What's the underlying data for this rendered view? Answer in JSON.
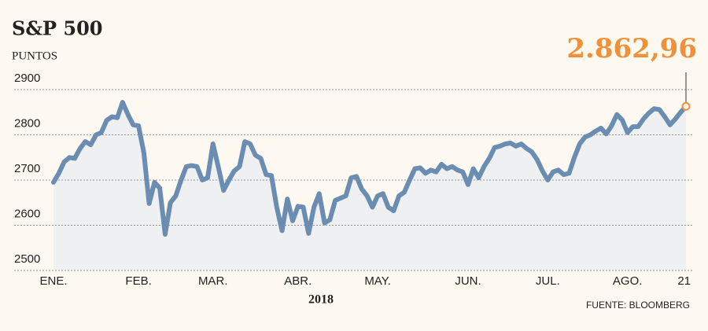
{
  "chart_data": {
    "type": "line",
    "title": "S&P 500",
    "subtitle": "PUNTOS",
    "x_label": "2018",
    "source": "FUENTE: BLOOMBERG",
    "categories": [
      "ENE.",
      null,
      null,
      null,
      null,
      null,
      null,
      null,
      null,
      null,
      null,
      null,
      null,
      null,
      null,
      null,
      "FEB.",
      null,
      null,
      null,
      null,
      null,
      null,
      null,
      null,
      null,
      null,
      null,
      null,
      null,
      "MAR.",
      null,
      null,
      null,
      null,
      null,
      null,
      null,
      null,
      null,
      null,
      null,
      null,
      null,
      null,
      null,
      "ABR.",
      null,
      null,
      null,
      null,
      null,
      null,
      null,
      null,
      null,
      null,
      null,
      null,
      null,
      null,
      "MAY.",
      null,
      null,
      null,
      null,
      null,
      null,
      null,
      null,
      null,
      null,
      null,
      null,
      null,
      null,
      null,
      null,
      "JUN.",
      null,
      null,
      null,
      null,
      null,
      null,
      null,
      null,
      null,
      null,
      null,
      null,
      null,
      null,
      "JUL.",
      null,
      null,
      null,
      null,
      null,
      null,
      null,
      null,
      null,
      null,
      null,
      null,
      null,
      null,
      "AGO.",
      null,
      null,
      null,
      null,
      null,
      null,
      null,
      null,
      null,
      null,
      "21"
    ],
    "series": [
      {
        "name": "S&P 500",
        "color": "#6b8db2",
        "values": [
          2695,
          2715,
          2740,
          2750,
          2748,
          2770,
          2785,
          2778,
          2800,
          2805,
          2832,
          2840,
          2838,
          2872,
          2845,
          2822,
          2820,
          2760,
          2648,
          2695,
          2682,
          2580,
          2650,
          2665,
          2700,
          2730,
          2732,
          2730,
          2700,
          2705,
          2780,
          2730,
          2677,
          2700,
          2720,
          2730,
          2785,
          2780,
          2755,
          2748,
          2712,
          2710,
          2640,
          2588,
          2658,
          2610,
          2642,
          2640,
          2582,
          2640,
          2670,
          2605,
          2612,
          2655,
          2660,
          2665,
          2705,
          2708,
          2680,
          2665,
          2640,
          2665,
          2670,
          2640,
          2632,
          2665,
          2673,
          2700,
          2725,
          2727,
          2715,
          2722,
          2718,
          2735,
          2725,
          2730,
          2722,
          2718,
          2690,
          2725,
          2705,
          2730,
          2748,
          2772,
          2775,
          2780,
          2782,
          2775,
          2780,
          2770,
          2762,
          2745,
          2720,
          2700,
          2718,
          2722,
          2712,
          2715,
          2750,
          2780,
          2795,
          2800,
          2808,
          2815,
          2802,
          2820,
          2845,
          2833,
          2805,
          2818,
          2818,
          2835,
          2848,
          2858,
          2856,
          2840,
          2822,
          2835,
          2850,
          2862.96
        ],
        "value_labels": [
          null,
          null,
          null,
          null,
          null,
          null,
          null,
          null,
          null,
          null,
          null,
          null,
          null,
          null,
          null,
          null,
          null,
          null,
          null,
          null,
          null,
          null,
          null,
          null,
          null,
          null,
          null,
          null,
          null,
          null,
          null,
          null,
          null,
          null,
          null,
          null,
          null,
          null,
          null,
          null,
          null,
          null,
          null,
          null,
          null,
          null,
          null,
          null,
          null,
          null,
          null,
          null,
          null,
          null,
          null,
          null,
          null,
          null,
          null,
          null,
          null,
          null,
          null,
          null,
          null,
          null,
          null,
          null,
          null,
          null,
          null,
          null,
          null,
          null,
          null,
          null,
          null,
          null,
          null,
          null,
          null,
          null,
          null,
          null,
          null,
          null,
          null,
          null,
          null,
          null,
          null,
          null,
          null,
          null,
          null,
          null,
          null,
          null,
          null,
          null,
          null,
          null,
          null,
          null,
          null,
          null,
          null,
          null,
          null,
          null,
          null,
          null,
          null,
          null,
          null,
          null,
          null,
          null,
          null,
          "2.862,96"
        ]
      }
    ],
    "ylim": [
      2500,
      2900
    ],
    "yticks": [
      2500,
      2600,
      2700,
      2800,
      2900
    ],
    "grid": true,
    "area_color": "#eef0f1",
    "label_color": "#f0913a"
  }
}
